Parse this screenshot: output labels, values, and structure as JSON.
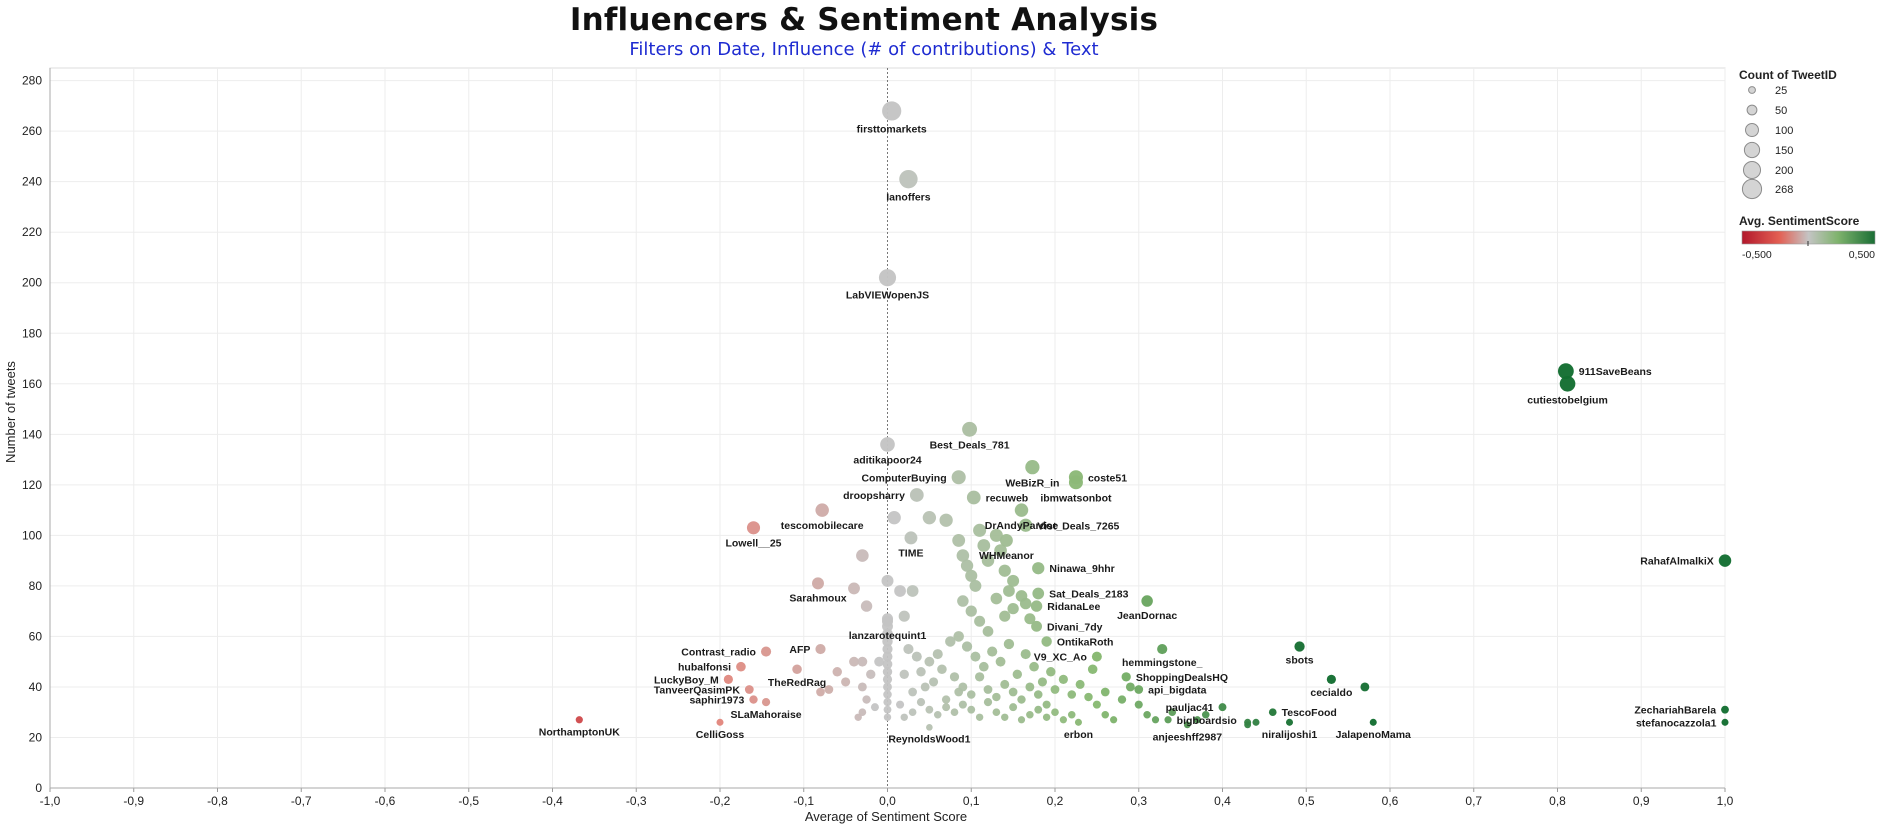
{
  "header": {
    "title": "Influencers & Sentiment Analysis",
    "subtitle": "Filters on Date, Influence (# of contributions) & Text"
  },
  "colors": {
    "negative": "#b2182b",
    "neutral": "#c4c4c4",
    "positive": "#1a7a3c",
    "subtitle": "#1e2bd1",
    "grid": "#ececec",
    "zero_line": "#777777"
  },
  "legend": {
    "size_title": "Count of TweetID",
    "size_items": [
      "25",
      "50",
      "100",
      "150",
      "200",
      "268"
    ],
    "color_title": "Avg. SentimentScore",
    "color_min_label": "-0,500",
    "color_max_label": "0,500"
  },
  "chart_data": {
    "type": "scatter",
    "title": "Influencers & Sentiment Analysis",
    "subtitle": "Filters on Date, Influence (# of contributions) & Text",
    "xlabel": "Average of Sentiment Score",
    "ylabel": "Number of tweets",
    "xlim": [
      -1.0,
      1.0
    ],
    "ylim": [
      0,
      285
    ],
    "x_ticks": [
      "-1,0",
      "-0,9",
      "-0,8",
      "-0,7",
      "-0,6",
      "-0,5",
      "-0,4",
      "-0,3",
      "-0,2",
      "-0,1",
      "0,0",
      "0,1",
      "0,2",
      "0,3",
      "0,4",
      "0,5",
      "0,6",
      "0,7",
      "0,8",
      "0,9",
      "1,0"
    ],
    "y_ticks": [
      "0",
      "20",
      "40",
      "60",
      "80",
      "100",
      "120",
      "140",
      "160",
      "180",
      "200",
      "220",
      "240",
      "260",
      "280"
    ],
    "grid": true,
    "reference_line_x": 0,
    "size_field": "Count of TweetID",
    "color_field": "Avg. SentimentScore",
    "labeled_points": [
      {
        "label": "firsttomarkets",
        "x": 0.005,
        "y": 268,
        "label_pos": "below"
      },
      {
        "label": "Ianoffers",
        "x": 0.025,
        "y": 241,
        "label_pos": "below"
      },
      {
        "label": "LabVIEWopenJS",
        "x": 0.0,
        "y": 202,
        "label_pos": "below"
      },
      {
        "label": "911SaveBeans",
        "x": 0.81,
        "y": 165,
        "label_pos": "right"
      },
      {
        "label": "cutiestobelgium",
        "x": 0.812,
        "y": 160,
        "label_pos": "below"
      },
      {
        "label": "Best_Deals_781",
        "x": 0.098,
        "y": 142,
        "label_pos": "below"
      },
      {
        "label": "aditikapoor24",
        "x": 0.0,
        "y": 136,
        "label_pos": "below"
      },
      {
        "label": "WeBizR_in",
        "x": 0.173,
        "y": 127,
        "label_pos": "below"
      },
      {
        "label": "coste51",
        "x": 0.225,
        "y": 123,
        "label_pos": "right"
      },
      {
        "label": "ComputerBuying",
        "x": 0.085,
        "y": 123,
        "label_pos": "left"
      },
      {
        "label": "ibmwatsonbot",
        "x": 0.225,
        "y": 121,
        "label_pos": "below"
      },
      {
        "label": "droopsharry",
        "x": 0.035,
        "y": 116,
        "label_pos": "left"
      },
      {
        "label": "recuweb",
        "x": 0.103,
        "y": 115,
        "label_pos": "right"
      },
      {
        "label": "DrAndyPardoe",
        "x": 0.16,
        "y": 110,
        "label_pos": "below"
      },
      {
        "label": "tescomobilecare",
        "x": -0.078,
        "y": 110,
        "label_pos": "below"
      },
      {
        "label": "Vist_Deals_7265",
        "x": 0.165,
        "y": 104,
        "label_pos": "right"
      },
      {
        "label": "Lowell__25",
        "x": -0.16,
        "y": 103,
        "label_pos": "below"
      },
      {
        "label": "TIME",
        "x": 0.028,
        "y": 99,
        "label_pos": "below"
      },
      {
        "label": "WHMeanor",
        "x": 0.142,
        "y": 98,
        "label_pos": "below"
      },
      {
        "label": "RahafAlmalkiX",
        "x": 1.0,
        "y": 90,
        "label_pos": "left"
      },
      {
        "label": "Ninawa_9hhr",
        "x": 0.18,
        "y": 87,
        "label_pos": "right"
      },
      {
        "label": "Sarahmoux",
        "x": -0.083,
        "y": 81,
        "label_pos": "below"
      },
      {
        "label": "Sat_Deals_2183",
        "x": 0.18,
        "y": 77,
        "label_pos": "right"
      },
      {
        "label": "JeanDornac",
        "x": 0.31,
        "y": 74,
        "label_pos": "below"
      },
      {
        "label": "RidanaLee",
        "x": 0.178,
        "y": 72,
        "label_pos": "right"
      },
      {
        "label": "Divani_7dy",
        "x": 0.178,
        "y": 64,
        "label_pos": "right"
      },
      {
        "label": "lanzarotequint1",
        "x": 0.0,
        "y": 66,
        "label_pos": "below"
      },
      {
        "label": "OntikaRoth",
        "x": 0.19,
        "y": 58,
        "label_pos": "right"
      },
      {
        "label": "sbots",
        "x": 0.492,
        "y": 56,
        "label_pos": "below"
      },
      {
        "label": "hemmingstone_",
        "x": 0.328,
        "y": 55,
        "label_pos": "below"
      },
      {
        "label": "Contrast_radio",
        "x": -0.145,
        "y": 54,
        "label_pos": "left"
      },
      {
        "label": "AFP",
        "x": -0.08,
        "y": 55,
        "label_pos": "left"
      },
      {
        "label": "V9_XC_Ao",
        "x": 0.25,
        "y": 52,
        "label_pos": "left"
      },
      {
        "label": "hubalfonsi",
        "x": -0.175,
        "y": 48,
        "label_pos": "left"
      },
      {
        "label": "ShoppingDealsHQ",
        "x": 0.285,
        "y": 44,
        "label_pos": "right"
      },
      {
        "label": "LuckyBoy_M",
        "x": -0.19,
        "y": 43,
        "label_pos": "left"
      },
      {
        "label": "TheRedRag",
        "x": -0.108,
        "y": 47,
        "label_pos": "below"
      },
      {
        "label": "cecialdo",
        "x": 0.53,
        "y": 43,
        "label_pos": "below"
      },
      {
        "label": "TanveerQasimPK",
        "x": -0.165,
        "y": 39,
        "label_pos": "left"
      },
      {
        "label": "api_bigdata",
        "x": 0.3,
        "y": 39,
        "label_pos": "right"
      },
      {
        "label": "pauljac41",
        "x": 0.4,
        "y": 32,
        "label_pos": "left"
      },
      {
        "label": "saphir1973",
        "x": -0.16,
        "y": 35,
        "label_pos": "left"
      },
      {
        "label": "SLaMahoraise",
        "x": -0.145,
        "y": 34,
        "label_pos": "below"
      },
      {
        "label": "TescoFood",
        "x": 0.46,
        "y": 30,
        "label_pos": "right"
      },
      {
        "label": "ZechariahBarela",
        "x": 1.0,
        "y": 31,
        "label_pos": "left"
      },
      {
        "label": "bigboardsio",
        "x": 0.335,
        "y": 27,
        "label_pos": "right"
      },
      {
        "label": "NorthamptonUK",
        "x": -0.368,
        "y": 27,
        "label_pos": "below"
      },
      {
        "label": "stefanocazzola1",
        "x": 1.0,
        "y": 26,
        "label_pos": "left"
      },
      {
        "label": "anjeeshff2987",
        "x": 0.358,
        "y": 25,
        "label_pos": "below"
      },
      {
        "label": "CelliGoss",
        "x": -0.2,
        "y": 26,
        "label_pos": "below"
      },
      {
        "label": "erbon",
        "x": 0.228,
        "y": 26,
        "label_pos": "below"
      },
      {
        "label": "niralijoshi1",
        "x": 0.48,
        "y": 26,
        "label_pos": "below"
      },
      {
        "label": "JalapenoMama",
        "x": 0.58,
        "y": 26,
        "label_pos": "below"
      },
      {
        "label": "ReynoldsWood1",
        "x": 0.05,
        "y": 24,
        "label_pos": "below"
      }
    ],
    "unlabeled_points": [
      [
        0.008,
        107
      ],
      [
        0.05,
        107
      ],
      [
        0.07,
        106
      ],
      [
        -0.03,
        92
      ],
      [
        0.0,
        82
      ],
      [
        -0.04,
        79
      ],
      [
        -0.025,
        72
      ],
      [
        0.015,
        78
      ],
      [
        0.03,
        78
      ],
      [
        0.0,
        67
      ],
      [
        0.0,
        64
      ],
      [
        0.0,
        61
      ],
      [
        0.0,
        58
      ],
      [
        0.0,
        55
      ],
      [
        0.0,
        52
      ],
      [
        0.0,
        49
      ],
      [
        0.0,
        46
      ],
      [
        0.0,
        43
      ],
      [
        0.0,
        40
      ],
      [
        0.0,
        37
      ],
      [
        0.0,
        34
      ],
      [
        0.0,
        31
      ],
      [
        0.0,
        28
      ],
      [
        -0.01,
        50
      ],
      [
        -0.02,
        45
      ],
      [
        -0.03,
        40
      ],
      [
        -0.025,
        35
      ],
      [
        -0.03,
        30
      ],
      [
        -0.035,
        28
      ],
      [
        -0.015,
        32
      ],
      [
        -0.05,
        42
      ],
      [
        -0.06,
        46
      ],
      [
        -0.07,
        39
      ],
      [
        -0.08,
        38
      ],
      [
        -0.04,
        50
      ],
      [
        -0.03,
        50
      ],
      [
        0.02,
        68
      ],
      [
        0.025,
        55
      ],
      [
        0.035,
        52
      ],
      [
        0.04,
        46
      ],
      [
        0.05,
        50
      ],
      [
        0.06,
        53
      ],
      [
        0.02,
        45
      ],
      [
        0.03,
        38
      ],
      [
        0.045,
        40
      ],
      [
        0.055,
        42
      ],
      [
        0.065,
        47
      ],
      [
        0.07,
        35
      ],
      [
        0.075,
        58
      ],
      [
        0.08,
        44
      ],
      [
        0.085,
        38
      ],
      [
        0.015,
        33
      ],
      [
        0.02,
        28
      ],
      [
        0.03,
        30
      ],
      [
        0.04,
        34
      ],
      [
        0.05,
        31
      ],
      [
        0.06,
        29
      ],
      [
        0.07,
        32
      ],
      [
        0.08,
        30
      ],
      [
        0.09,
        33
      ],
      [
        0.1,
        31
      ],
      [
        0.11,
        28
      ],
      [
        0.12,
        34
      ],
      [
        0.085,
        98
      ],
      [
        0.09,
        92
      ],
      [
        0.095,
        88
      ],
      [
        0.1,
        84
      ],
      [
        0.105,
        80
      ],
      [
        0.11,
        102
      ],
      [
        0.115,
        96
      ],
      [
        0.12,
        90
      ],
      [
        0.13,
        100
      ],
      [
        0.135,
        94
      ],
      [
        0.14,
        86
      ],
      [
        0.145,
        78
      ],
      [
        0.15,
        82
      ],
      [
        0.09,
        74
      ],
      [
        0.1,
        70
      ],
      [
        0.11,
        66
      ],
      [
        0.12,
        62
      ],
      [
        0.13,
        75
      ],
      [
        0.14,
        68
      ],
      [
        0.15,
        71
      ],
      [
        0.16,
        76
      ],
      [
        0.165,
        73
      ],
      [
        0.17,
        67
      ],
      [
        0.085,
        60
      ],
      [
        0.095,
        56
      ],
      [
        0.105,
        52
      ],
      [
        0.115,
        48
      ],
      [
        0.125,
        54
      ],
      [
        0.135,
        50
      ],
      [
        0.145,
        57
      ],
      [
        0.155,
        45
      ],
      [
        0.165,
        53
      ],
      [
        0.175,
        48
      ],
      [
        0.185,
        42
      ],
      [
        0.195,
        46
      ],
      [
        0.09,
        40
      ],
      [
        0.1,
        37
      ],
      [
        0.11,
        44
      ],
      [
        0.12,
        39
      ],
      [
        0.13,
        36
      ],
      [
        0.14,
        41
      ],
      [
        0.15,
        38
      ],
      [
        0.16,
        35
      ],
      [
        0.17,
        40
      ],
      [
        0.18,
        37
      ],
      [
        0.19,
        33
      ],
      [
        0.13,
        30
      ],
      [
        0.14,
        28
      ],
      [
        0.15,
        32
      ],
      [
        0.16,
        27
      ],
      [
        0.17,
        29
      ],
      [
        0.18,
        31
      ],
      [
        0.19,
        28
      ],
      [
        0.2,
        30
      ],
      [
        0.21,
        27
      ],
      [
        0.22,
        29
      ],
      [
        0.2,
        39
      ],
      [
        0.21,
        43
      ],
      [
        0.22,
        37
      ],
      [
        0.23,
        41
      ],
      [
        0.24,
        36
      ],
      [
        0.245,
        47
      ],
      [
        0.26,
        38
      ],
      [
        0.25,
        33
      ],
      [
        0.26,
        29
      ],
      [
        0.27,
        27
      ],
      [
        0.28,
        35
      ],
      [
        0.29,
        40
      ],
      [
        0.3,
        33
      ],
      [
        0.31,
        29
      ],
      [
        0.32,
        27
      ],
      [
        0.34,
        30
      ],
      [
        0.37,
        27
      ],
      [
        0.38,
        29
      ],
      [
        0.43,
        26
      ],
      [
        0.43,
        25
      ],
      [
        0.44,
        26
      ],
      [
        0.57,
        40
      ]
    ]
  }
}
